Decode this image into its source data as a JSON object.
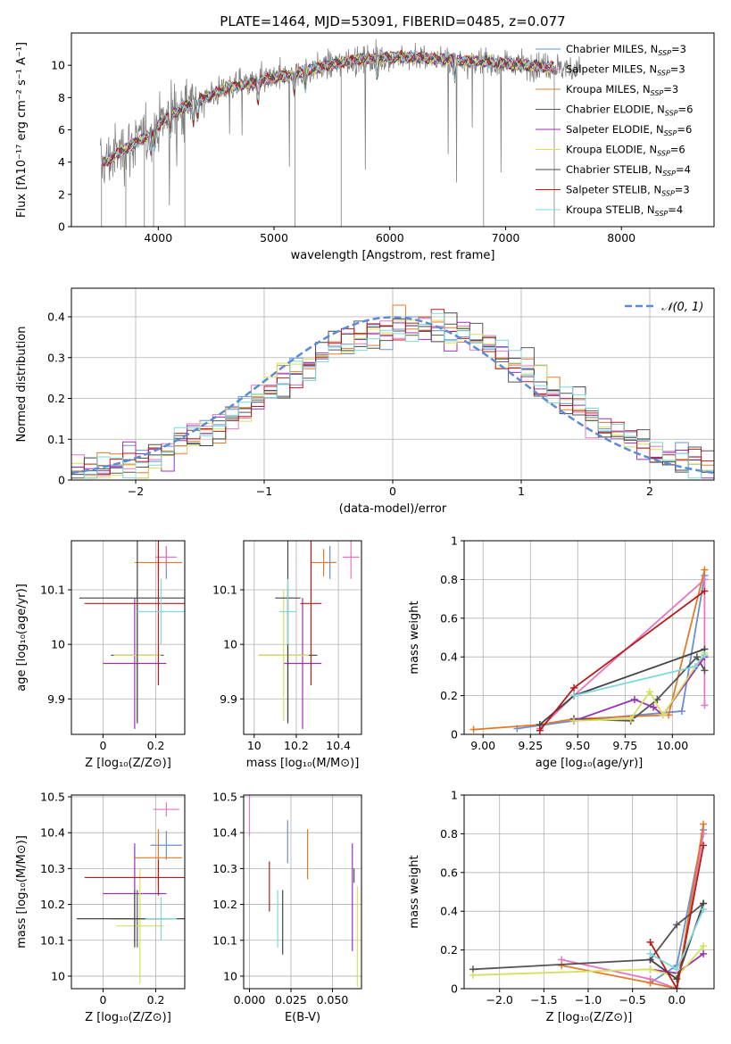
{
  "figure_title": "PLATE=1464, MJD=53091, FIBERID=0485, z=0.077",
  "colors": {
    "Chabrier MILES": "#6a8fcf",
    "Salpeter MILES": "#e377c2",
    "Kroupa MILES": "#e07b2a",
    "Chabrier ELODIE": "#555555",
    "Salpeter ELODIE": "#9b30b5",
    "Kroupa ELODIE": "#d6e05a",
    "Chabrier STELIB": "#444444",
    "Salpeter STELIB": "#b81c1c",
    "Kroupa STELIB": "#7fd8dc",
    "observed": "#808080",
    "normal": "#5b8bd6"
  },
  "chart_data": [
    {
      "id": "spectrum",
      "type": "line",
      "xlabel": "wavelength [Angstrom, rest frame]",
      "ylabel": "Flux [fλ10⁻¹⁷ erg cm⁻² s⁻¹ A⁻¹]",
      "xlim": [
        3250,
        8800
      ],
      "ylim": [
        0,
        12
      ],
      "xticks": [
        4000,
        5000,
        6000,
        7000,
        8000
      ],
      "yticks": [
        0,
        2,
        4,
        6,
        8,
        10
      ],
      "grid": false,
      "legend_position": "right",
      "legend": [
        {
          "name": "Chabrier MILES",
          "sub": "SSP",
          "n": "3"
        },
        {
          "name": "Salpeter MILES",
          "sub": "SSP",
          "n": "3"
        },
        {
          "name": "Kroupa MILES",
          "sub": "SSP",
          "n": "3"
        },
        {
          "name": "Chabrier ELODIE",
          "sub": "SSP",
          "n": "6"
        },
        {
          "name": "Salpeter ELODIE",
          "sub": "SSP",
          "n": "6"
        },
        {
          "name": "Kroupa ELODIE",
          "sub": "SSP",
          "n": "6"
        },
        {
          "name": "Chabrier STELIB",
          "sub": "SSP",
          "n": "4"
        },
        {
          "name": "Salpeter STELIB",
          "sub": "SSP",
          "n": "3"
        },
        {
          "name": "Kroupa STELIB",
          "sub": "SSP",
          "n": "4"
        }
      ],
      "continuum_wavelength": [
        3500,
        3600,
        3700,
        3800,
        3900,
        4000,
        4100,
        4200,
        4400,
        4600,
        4800,
        5000,
        5200,
        5400,
        5600,
        5800,
        6000,
        6200,
        6400,
        6600,
        6800,
        7000,
        7200,
        7400,
        7600
      ],
      "continuum_flux": [
        3.8,
        4.3,
        4.8,
        5.2,
        5.6,
        6.3,
        6.9,
        7.3,
        8.0,
        8.6,
        8.9,
        9.2,
        9.5,
        9.9,
        10.2,
        10.4,
        10.5,
        10.5,
        10.4,
        10.3,
        10.2,
        10.1,
        10.0,
        9.9,
        9.8
      ]
    },
    {
      "id": "residuals",
      "type": "line",
      "xlabel": "(data-model)/error",
      "ylabel": "Normed distribution",
      "xlim": [
        -2.5,
        2.5
      ],
      "ylim": [
        0,
        0.47
      ],
      "xticks": [
        -2,
        -1,
        0,
        1,
        2
      ],
      "yticks": [
        0.0,
        0.1,
        0.2,
        0.3,
        0.4
      ],
      "grid": true,
      "legend_position": "top-right",
      "normal_label": "𝒩(0, 1)",
      "normal_mean": 0,
      "normal_sigma": 1,
      "histogram_bin_width": 0.1
    },
    {
      "id": "age-vs-Z",
      "type": "scatter",
      "xlabel": "Z [log₁₀(Z/Z⊙)]",
      "ylabel": "age  [log₁₀(age/yr)]",
      "xlim": [
        -0.12,
        0.31
      ],
      "ylim": [
        9.835,
        10.19
      ],
      "xticks": [
        0.0,
        0.2
      ],
      "yticks": [
        9.9,
        10.0,
        10.1
      ],
      "grid": true,
      "points": [
        {
          "series": "Chabrier MILES",
          "x": 0.24,
          "y": 10.15,
          "xerr": 0.005,
          "yerr": 0.03
        },
        {
          "series": "Salpeter MILES",
          "x": 0.24,
          "y": 10.16,
          "xerr": 0.04,
          "yerr": 0.02
        },
        {
          "series": "Kroupa MILES",
          "x": 0.21,
          "y": 10.15,
          "xerr": 0.09,
          "yerr": 0.025
        },
        {
          "series": "Chabrier ELODIE",
          "x": 0.13,
          "y": 9.98,
          "xerr": 0.1,
          "yerr": 0.12
        },
        {
          "series": "Salpeter ELODIE",
          "x": 0.12,
          "y": 9.965,
          "xerr": 0.12,
          "yerr": 0.12
        },
        {
          "series": "Kroupa ELODIE",
          "x": 0.13,
          "y": 9.98,
          "xerr": 0.09,
          "yerr": 0.12
        },
        {
          "series": "Chabrier STELIB",
          "x": 0.13,
          "y": 10.085,
          "xerr": 0.22,
          "yerr": 0.23
        },
        {
          "series": "Salpeter STELIB",
          "x": 0.21,
          "y": 10.075,
          "xerr": 0.28,
          "yerr": 0.15
        },
        {
          "series": "Kroupa STELIB",
          "x": 0.22,
          "y": 10.06,
          "xerr": 0.09,
          "yerr": 0.06
        }
      ]
    },
    {
      "id": "age-vs-mass",
      "type": "scatter",
      "xlabel": "mass [log₁₀(M/M⊙)]",
      "ylabel": "",
      "xlim": [
        9.95,
        10.51
      ],
      "ylim": [
        9.835,
        10.19
      ],
      "xticks": [
        10.0,
        10.2,
        10.4
      ],
      "yticks": [
        9.9,
        10.0,
        10.1
      ],
      "grid": true,
      "points": [
        {
          "series": "Chabrier MILES",
          "x": 10.36,
          "y": 10.15,
          "xerr": 0.03,
          "yerr": 0.03
        },
        {
          "series": "Salpeter MILES",
          "x": 10.46,
          "y": 10.16,
          "xerr": 0.04,
          "yerr": 0.04
        },
        {
          "series": "Kroupa MILES",
          "x": 10.33,
          "y": 10.15,
          "xerr": 0.06,
          "yerr": 0.025
        },
        {
          "series": "Chabrier ELODIE",
          "x": 10.16,
          "y": 9.98,
          "xerr": 0.14,
          "yerr": 0.12
        },
        {
          "series": "Salpeter ELODIE",
          "x": 10.23,
          "y": 9.965,
          "xerr": 0.09,
          "yerr": 0.12
        },
        {
          "series": "Kroupa ELODIE",
          "x": 10.14,
          "y": 9.98,
          "xerr": 0.12,
          "yerr": 0.12
        },
        {
          "series": "Chabrier STELIB",
          "x": 10.16,
          "y": 10.085,
          "xerr": 0.06,
          "yerr": 0.23
        },
        {
          "series": "Salpeter STELIB",
          "x": 10.27,
          "y": 10.075,
          "xerr": 0.05,
          "yerr": 0.15
        },
        {
          "series": "Kroupa STELIB",
          "x": 10.16,
          "y": 10.06,
          "xerr": 0.04,
          "yerr": 0.06
        }
      ]
    },
    {
      "id": "mass-vs-Z",
      "type": "scatter",
      "xlabel": "Z [log₁₀(Z/Z⊙)]",
      "ylabel": "mass [log₁₀(M/M⊙)]",
      "xlim": [
        -0.12,
        0.31
      ],
      "ylim": [
        9.965,
        10.505
      ],
      "xticks": [
        0.0,
        0.2
      ],
      "yticks": [
        10.0,
        10.1,
        10.2,
        10.3,
        10.4,
        10.5
      ],
      "grid": true,
      "points": [
        {
          "series": "Chabrier MILES",
          "x": 0.24,
          "y": 10.365,
          "xerr": 0.06,
          "yerr": 0.04
        },
        {
          "series": "Salpeter MILES",
          "x": 0.24,
          "y": 10.465,
          "xerr": 0.05,
          "yerr": 0.02
        },
        {
          "series": "Kroupa MILES",
          "x": 0.21,
          "y": 10.33,
          "xerr": 0.09,
          "yerr": 0.08
        },
        {
          "series": "Chabrier ELODIE",
          "x": 0.13,
          "y": 10.16,
          "xerr": 0.1,
          "yerr": 0.08
        },
        {
          "series": "Salpeter ELODIE",
          "x": 0.12,
          "y": 10.23,
          "xerr": 0.12,
          "yerr": 0.14
        },
        {
          "series": "Kroupa ELODIE",
          "x": 0.14,
          "y": 10.14,
          "xerr": 0.09,
          "yerr": 0.16
        },
        {
          "series": "Chabrier STELIB",
          "x": 0.12,
          "y": 10.16,
          "xerr": 0.22,
          "yerr": 0.08
        },
        {
          "series": "Salpeter STELIB",
          "x": 0.21,
          "y": 10.275,
          "xerr": 0.28,
          "yerr": 0.05
        },
        {
          "series": "Kroupa STELIB",
          "x": 0.22,
          "y": 10.16,
          "xerr": 0.06,
          "yerr": 0.06
        }
      ]
    },
    {
      "id": "mass-vs-ebv",
      "type": "scatter",
      "xlabel": "E(B-V)",
      "ylabel": "",
      "xlim": [
        -0.0035,
        0.0675
      ],
      "ylim": [
        9.965,
        10.505
      ],
      "xticks": [
        0.0,
        0.025,
        0.05
      ],
      "xticklabels": [
        "0.000",
        "0.025",
        "0.050"
      ],
      "yticks": [
        10.0,
        10.1,
        10.2,
        10.3,
        10.4,
        10.5
      ],
      "grid": true,
      "points": [
        {
          "series": "Chabrier MILES",
          "x": 0.023,
          "y": 10.375,
          "xerr": 0.0,
          "yerr": 0.06
        },
        {
          "series": "Salpeter MILES",
          "x": 0.0,
          "y": 10.45,
          "xerr": 0.0,
          "yerr": 0.06
        },
        {
          "series": "Kroupa MILES",
          "x": 0.035,
          "y": 10.34,
          "xerr": 0.0,
          "yerr": 0.07
        },
        {
          "series": "Chabrier ELODIE",
          "x": 0.063,
          "y": 10.28,
          "xerr": 0.0,
          "yerr": 0.02
        },
        {
          "series": "Salpeter ELODIE",
          "x": 0.062,
          "y": 10.22,
          "xerr": 0.0,
          "yerr": 0.15
        },
        {
          "series": "Kroupa ELODIE",
          "x": 0.065,
          "y": 10.11,
          "xerr": 0.0,
          "yerr": 0.14
        },
        {
          "series": "Chabrier STELIB",
          "x": 0.02,
          "y": 10.15,
          "xerr": 0.0,
          "yerr": 0.09
        },
        {
          "series": "Salpeter STELIB",
          "x": 0.012,
          "y": 10.25,
          "xerr": 0.0,
          "yerr": 0.07
        },
        {
          "series": "Kroupa STELIB",
          "x": 0.017,
          "y": 10.16,
          "xerr": 0.0,
          "yerr": 0.08
        }
      ]
    },
    {
      "id": "weight-vs-age",
      "type": "line",
      "xlabel": "age  [log₁₀(age/yr)]",
      "ylabel": "mass weight",
      "xlim": [
        8.9,
        10.22
      ],
      "ylim": [
        0,
        1.0
      ],
      "xticks": [
        9.0,
        9.25,
        9.5,
        9.75,
        10.0
      ],
      "xticklabels": [
        "9.00",
        "9.25",
        "9.50",
        "9.75",
        "10.00"
      ],
      "yticks": [
        0.0,
        0.2,
        0.4,
        0.6,
        0.8,
        1.0
      ],
      "grid": true,
      "series": [
        {
          "name": "Chabrier MILES",
          "x": [
            9.18,
            9.48,
            10.05,
            10.17
          ],
          "y": [
            0.03,
            0.07,
            0.12,
            0.82
          ]
        },
        {
          "name": "Salpeter MILES",
          "x": [
            9.3,
            9.48,
            10.17,
            10.17
          ],
          "y": [
            0.03,
            0.2,
            0.8,
            0.15
          ]
        },
        {
          "name": "Kroupa MILES",
          "x": [
            8.95,
            9.3,
            9.48,
            9.98,
            10.17
          ],
          "y": [
            0.025,
            0.05,
            0.08,
            0.1,
            0.85
          ]
        },
        {
          "name": "Chabrier ELODIE",
          "x": [
            9.48,
            9.78,
            9.92,
            10.13,
            10.17
          ],
          "y": [
            0.08,
            0.07,
            0.18,
            0.4,
            0.33
          ]
        },
        {
          "name": "Salpeter ELODIE",
          "x": [
            9.48,
            9.8,
            9.9,
            9.95,
            10.17
          ],
          "y": [
            0.07,
            0.18,
            0.14,
            0.1,
            0.4
          ]
        },
        {
          "name": "Kroupa ELODIE",
          "x": [
            9.48,
            9.78,
            9.88,
            9.95,
            10.17
          ],
          "y": [
            0.07,
            0.08,
            0.22,
            0.1,
            0.42
          ]
        },
        {
          "name": "Chabrier STELIB",
          "x": [
            9.3,
            9.48,
            10.17
          ],
          "y": [
            0.05,
            0.2,
            0.44
          ]
        },
        {
          "name": "Salpeter STELIB",
          "x": [
            9.3,
            9.48,
            10.17
          ],
          "y": [
            0.02,
            0.24,
            0.74
          ]
        },
        {
          "name": "Kroupa STELIB",
          "x": [
            9.48,
            10.12,
            10.17
          ],
          "y": [
            0.2,
            0.35,
            0.41
          ]
        }
      ]
    },
    {
      "id": "weight-vs-Z",
      "type": "line",
      "xlabel": "Z [log₁₀(Z/Z⊙)]",
      "ylabel": "mass weight",
      "xlim": [
        -2.4,
        0.42
      ],
      "ylim": [
        0,
        1.0
      ],
      "xticks": [
        -2.0,
        -1.5,
        -1.0,
        -0.5,
        0.0
      ],
      "xticklabels": [
        "−2.0",
        "−1.5",
        "−1.0",
        "−0.5",
        "0.0"
      ],
      "yticks": [
        0.0,
        0.2,
        0.4,
        0.6,
        0.8,
        1.0
      ],
      "grid": true,
      "series": [
        {
          "name": "Chabrier MILES",
          "x": [
            -0.3,
            0.0,
            0.3
          ],
          "y": [
            0.03,
            0.12,
            0.82
          ]
        },
        {
          "name": "Salpeter MILES",
          "x": [
            -1.3,
            -0.3,
            0.0,
            0.3
          ],
          "y": [
            0.15,
            0.05,
            0.0,
            0.8
          ]
        },
        {
          "name": "Kroupa MILES",
          "x": [
            -1.3,
            -0.3,
            0.0,
            0.3
          ],
          "y": [
            0.12,
            0.03,
            0.0,
            0.85
          ]
        },
        {
          "name": "Chabrier ELODIE",
          "x": [
            -2.3,
            -0.3,
            0.0,
            0.3
          ],
          "y": [
            0.1,
            0.15,
            0.33,
            0.44
          ]
        },
        {
          "name": "Salpeter ELODIE",
          "x": [
            -0.3,
            0.0,
            0.3
          ],
          "y": [
            0.1,
            0.08,
            0.18
          ]
        },
        {
          "name": "Kroupa ELODIE",
          "x": [
            -2.3,
            -0.3,
            0.0,
            0.3
          ],
          "y": [
            0.07,
            0.1,
            0.06,
            0.22
          ]
        },
        {
          "name": "Chabrier STELIB",
          "x": [
            -0.3,
            0.0,
            0.3
          ],
          "y": [
            0.15,
            0.05,
            0.44
          ]
        },
        {
          "name": "Salpeter STELIB",
          "x": [
            -0.3,
            0.0,
            0.3
          ],
          "y": [
            0.24,
            0.0,
            0.74
          ]
        },
        {
          "name": "Kroupa STELIB",
          "x": [
            -0.3,
            0.0,
            0.3
          ],
          "y": [
            0.18,
            0.1,
            0.41
          ]
        }
      ]
    }
  ]
}
